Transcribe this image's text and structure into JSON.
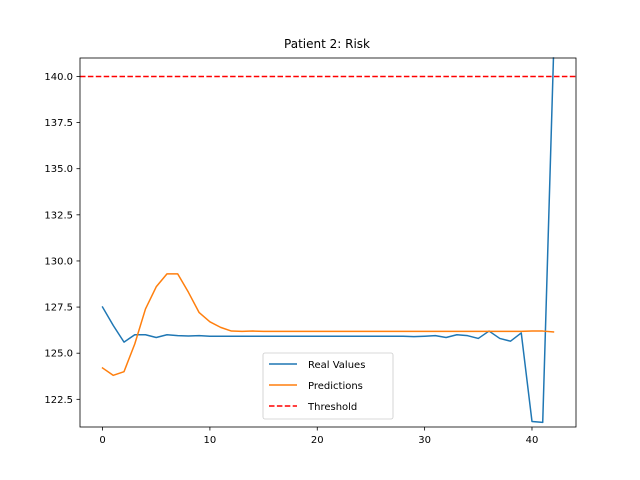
{
  "chart_data": {
    "type": "line",
    "title": "Patient 2: Risk",
    "xlabel": "",
    "ylabel": "",
    "xlim": [
      -2.1,
      44.1
    ],
    "ylim": [
      121.0,
      141.0
    ],
    "xticks": [
      0,
      10,
      20,
      30,
      40
    ],
    "xtick_labels": [
      "0",
      "10",
      "20",
      "30",
      "40"
    ],
    "yticks": [
      122.5,
      125.0,
      127.5,
      130.0,
      132.5,
      135.0,
      137.5,
      140.0
    ],
    "ytick_labels": [
      "122.5",
      "125.0",
      "127.5",
      "130.0",
      "132.5",
      "135.0",
      "137.5",
      "140.0"
    ],
    "grid": false,
    "legend_position": "lower-center",
    "series": [
      {
        "name": "Real Values",
        "color": "#1f77b4",
        "style": "solid",
        "x": [
          0,
          1,
          2,
          3,
          4,
          5,
          6,
          7,
          8,
          9,
          10,
          11,
          12,
          13,
          14,
          15,
          16,
          17,
          18,
          19,
          20,
          21,
          22,
          23,
          24,
          25,
          26,
          27,
          28,
          29,
          30,
          31,
          32,
          33,
          34,
          35,
          36,
          37,
          38,
          39,
          40,
          41,
          42
        ],
        "values": [
          127.5,
          126.5,
          125.6,
          126.0,
          126.0,
          125.85,
          126.0,
          125.95,
          125.93,
          125.95,
          125.92,
          125.92,
          125.92,
          125.92,
          125.92,
          125.92,
          125.92,
          125.92,
          125.92,
          125.92,
          125.92,
          125.92,
          125.92,
          125.92,
          125.92,
          125.92,
          125.92,
          125.92,
          125.92,
          125.9,
          125.92,
          125.95,
          125.85,
          126.0,
          125.95,
          125.8,
          126.2,
          125.8,
          125.65,
          126.1,
          121.3,
          121.25,
          141.0
        ]
      },
      {
        "name": "Predictions",
        "color": "#ff7f0e",
        "style": "solid",
        "x": [
          0,
          1,
          2,
          3,
          4,
          5,
          6,
          7,
          8,
          9,
          10,
          11,
          12,
          13,
          14,
          15,
          16,
          17,
          18,
          19,
          20,
          21,
          22,
          23,
          24,
          25,
          26,
          27,
          28,
          29,
          30,
          31,
          32,
          33,
          34,
          35,
          36,
          37,
          38,
          39,
          40,
          41,
          42
        ],
        "values": [
          124.2,
          123.8,
          124.0,
          125.5,
          127.4,
          128.6,
          129.3,
          129.3,
          128.3,
          127.2,
          126.7,
          126.4,
          126.2,
          126.18,
          126.2,
          126.18,
          126.18,
          126.18,
          126.18,
          126.18,
          126.18,
          126.18,
          126.18,
          126.18,
          126.18,
          126.18,
          126.18,
          126.18,
          126.18,
          126.18,
          126.18,
          126.18,
          126.18,
          126.18,
          126.18,
          126.18,
          126.18,
          126.18,
          126.18,
          126.18,
          126.2,
          126.2,
          126.15
        ]
      },
      {
        "name": "Threshold",
        "color": "#ff0000",
        "style": "dashed",
        "constant": 140.0
      }
    ]
  }
}
